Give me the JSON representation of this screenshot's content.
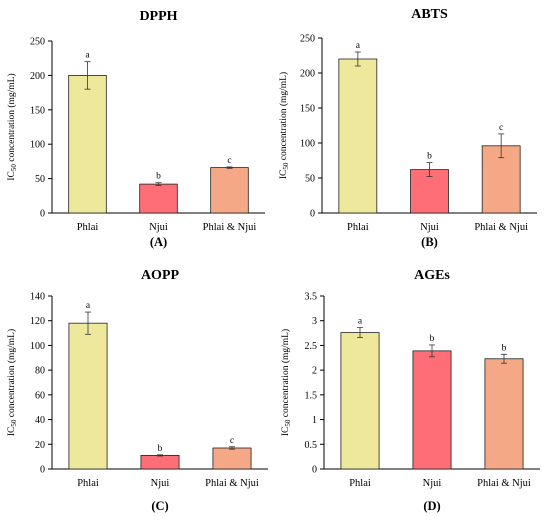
{
  "chart_data": [
    {
      "type": "bar",
      "title": "DPPH",
      "panel_label": "(A)",
      "categories": [
        "Phlai",
        "Njui",
        "Phlai & Njui"
      ],
      "values": [
        200,
        42,
        66
      ],
      "errors": [
        20,
        2,
        1
      ],
      "significance": [
        "a",
        "b",
        "c"
      ],
      "ylabel": {
        "prefix": "IC",
        "sub": "50",
        "suffix": " concentration (mg/mL)"
      },
      "ylim": [
        0,
        250
      ],
      "yticks": [
        "0",
        "50",
        "100",
        "150",
        "200",
        "250"
      ],
      "colors": [
        "#ede89c",
        "#fd6e77",
        "#f5a886"
      ],
      "grid": false
    },
    {
      "type": "bar",
      "title": "ABTS",
      "panel_label": "(B)",
      "categories": [
        "Phlai",
        "Njui",
        "Phlai & Njui"
      ],
      "values": [
        220,
        62,
        96
      ],
      "errors": [
        10,
        10,
        17
      ],
      "significance": [
        "a",
        "b",
        "c"
      ],
      "ylabel": {
        "prefix": "IC",
        "sub": "50",
        "suffix": " concentration (mg/mL)"
      },
      "ylim": [
        0,
        250
      ],
      "yticks": [
        "0",
        "50",
        "100",
        "150",
        "200",
        "250"
      ],
      "colors": [
        "#ede89c",
        "#fd6e77",
        "#f5a886"
      ],
      "grid": false
    },
    {
      "type": "bar",
      "title": "AOPP",
      "panel_label": "(C)",
      "categories": [
        "Phlai",
        "Njui",
        "Phlai & Njui"
      ],
      "values": [
        118,
        11,
        17
      ],
      "errors": [
        9,
        0.5,
        1
      ],
      "significance": [
        "a",
        "b",
        "c"
      ],
      "ylabel": {
        "prefix": "IC",
        "sub": "50",
        "suffix": " concentration (mg/mL)"
      },
      "ylim": [
        0,
        140
      ],
      "yticks": [
        "0",
        "20",
        "40",
        "60",
        "80",
        "100",
        "120",
        "140"
      ],
      "colors": [
        "#ede89c",
        "#fd6e77",
        "#f5a886"
      ],
      "grid": false
    },
    {
      "type": "bar",
      "title": "AGEs",
      "panel_label": "(D)",
      "categories": [
        "Phlai",
        "Njui",
        "Phlai & Njui"
      ],
      "values": [
        2.76,
        2.39,
        2.23
      ],
      "errors": [
        0.1,
        0.12,
        0.09
      ],
      "significance": [
        "a",
        "b",
        "b"
      ],
      "ylabel": {
        "prefix": "IC",
        "sub": "50",
        "suffix": " concentration (mg/mL)"
      },
      "ylim": [
        0,
        3.5
      ],
      "yticks": [
        "0",
        "0.5",
        "1",
        "1.5",
        "2",
        "2.5",
        "3",
        "3.5"
      ],
      "colors": [
        "#ede89c",
        "#fd6e77",
        "#f5a886"
      ],
      "grid": false
    }
  ]
}
